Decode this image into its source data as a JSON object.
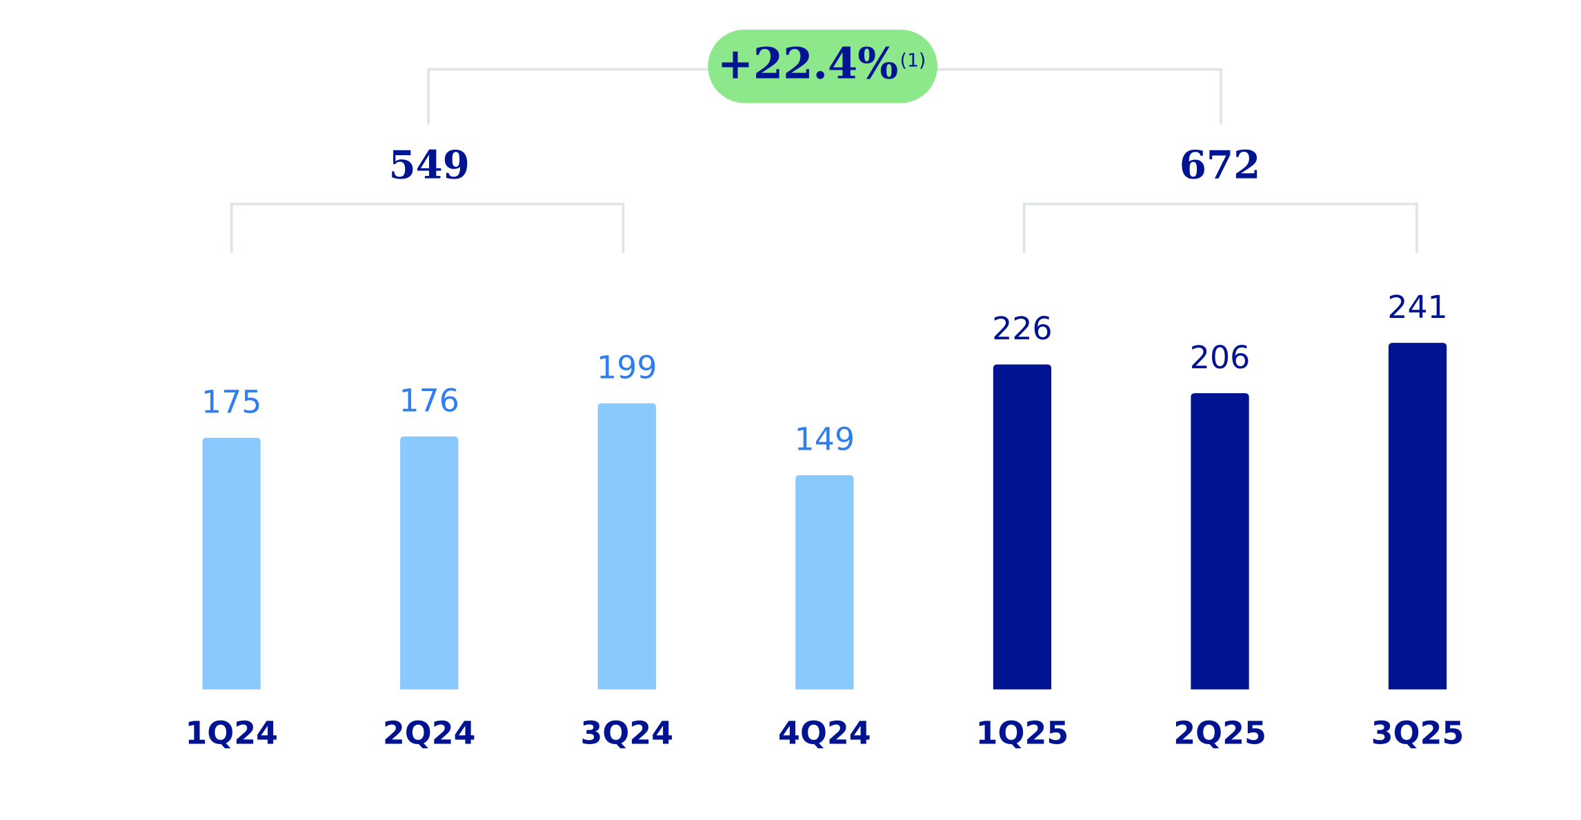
{
  "chart_data": {
    "type": "bar",
    "categories": [
      "1Q24",
      "2Q24",
      "3Q24",
      "4Q24",
      "1Q25",
      "2Q25",
      "3Q25"
    ],
    "values": [
      175,
      176,
      199,
      149,
      226,
      206,
      241
    ],
    "colors": [
      "#89c9fd",
      "#89c9fd",
      "#89c9fd",
      "#89c9fd",
      "#001391",
      "#001391",
      "#001391"
    ],
    "label_colors": [
      "#2f7ef0",
      "#2f7ef0",
      "#2f7ef0",
      "#2f7ef0",
      "#001391",
      "#001391",
      "#001391"
    ],
    "group_totals": [
      549,
      672
    ],
    "growth": {
      "value": 22.4,
      "label": "+22.4%",
      "note": "(1)",
      "color": "#8ce88a"
    }
  }
}
